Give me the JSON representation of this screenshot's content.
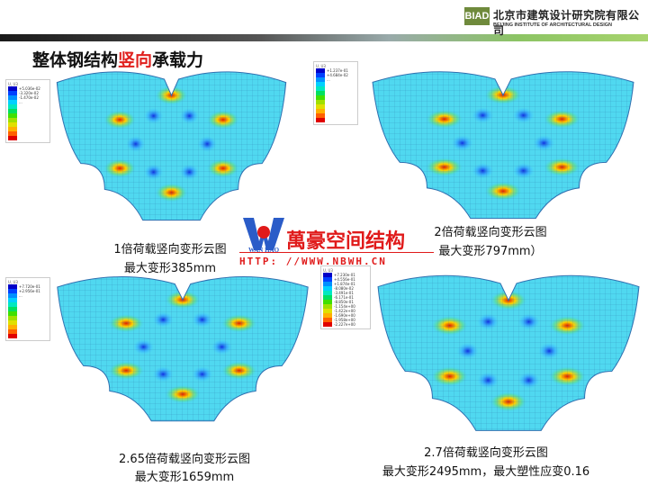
{
  "header": {
    "logo_text": "BIAD",
    "org_name_cn": "北京市建筑设计研究院有限公司",
    "org_name_en": "BEIJING INSTITUTE OF ARCHITECTURAL DESIGN",
    "accent_color": "#6f8a3c"
  },
  "title": {
    "part1": "整体钢结构",
    "part2": "竖向",
    "part3": "承载力",
    "highlight_color": "#e0201e"
  },
  "watermark": {
    "logo_text": "WAN HAO",
    "name": "萬豪空间结构",
    "url": "HTTP: //WWW.NBWH.CN"
  },
  "legend_colors": [
    "#0000c8",
    "#0040ff",
    "#0090ff",
    "#00d0ff",
    "#00e8c0",
    "#00e060",
    "#40e000",
    "#a0e000",
    "#e0e000",
    "#ffb000",
    "#ff6000",
    "#e00000"
  ],
  "panels": [
    {
      "legend_title": "U, U3",
      "legend_values": [
        "+5.036e-02",
        "-3.320e-02",
        "-1.470e-02",
        "..."
      ],
      "caption": [
        "1倍荷载竖向变形云图",
        "最大变形385mm"
      ]
    },
    {
      "legend_title": "U, U3",
      "legend_values": [
        "+1.237e-01",
        "+4.684e-02",
        "..."
      ],
      "caption": [
        "2倍荷载竖向变形云图",
        "最大变形797mm）"
      ]
    },
    {
      "legend_title": "U, U3",
      "legend_values": [
        "+7.720e-01",
        "+2.956e-01",
        "..."
      ],
      "caption": [
        "2.65倍荷载竖向变形云图",
        "最大变形1659mm"
      ]
    },
    {
      "legend_title": "U, U3",
      "legend_values": [
        "+7.230e-01",
        "+4.556e-01",
        "+1.874e-01",
        "-8.080e-02",
        "-3.491e-01",
        "-6.171e-01",
        "-8.850e-01",
        "-1.154e+00",
        "-1.422e+00",
        "-1.690e+00",
        "-1.958e+00",
        "-2.227e+00",
        "-2.495e+00"
      ],
      "caption": [
        "2.7倍荷载竖向变形云图",
        "最大变形2495mm，最大塑性应变0.16"
      ]
    }
  ]
}
